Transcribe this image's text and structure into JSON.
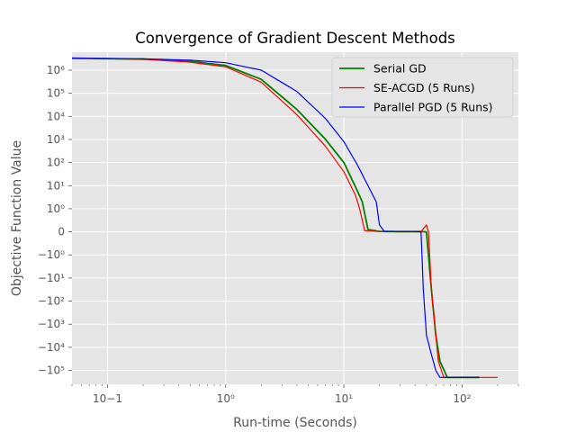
{
  "chart_data": {
    "type": "line",
    "title": "Convergence of Gradient Descent Methods",
    "xlabel": "Run-time (Seconds)",
    "ylabel": "Objective Function Value",
    "xscale": "log",
    "yscale": "symlog",
    "xlim": [
      0.05,
      300
    ],
    "ylim": [
      -400000,
      6000000
    ],
    "grid": true,
    "legend_position": "top-right",
    "x_ticks": [
      {
        "value": 0.1,
        "label": "10−1"
      },
      {
        "value": 1,
        "label": "10⁰"
      },
      {
        "value": 10,
        "label": "10¹"
      },
      {
        "value": 100,
        "label": "10²"
      }
    ],
    "y_ticks": [
      {
        "value": 1000000,
        "label": "10⁶"
      },
      {
        "value": 100000,
        "label": "10⁵"
      },
      {
        "value": 10000,
        "label": "10⁴"
      },
      {
        "value": 1000,
        "label": "10³"
      },
      {
        "value": 100,
        "label": "10²"
      },
      {
        "value": 10,
        "label": "10¹"
      },
      {
        "value": 1,
        "label": "10⁰"
      },
      {
        "value": 0,
        "label": "0"
      },
      {
        "value": -1,
        "label": "−10⁰"
      },
      {
        "value": -10,
        "label": "−10¹"
      },
      {
        "value": -100,
        "label": "−10²"
      },
      {
        "value": -1000,
        "label": "−10³"
      },
      {
        "value": -10000,
        "label": "−10⁴"
      },
      {
        "value": -100000,
        "label": "−10⁵"
      }
    ],
    "series": [
      {
        "name": "Serial GD",
        "color": "#008000",
        "x": [
          0.05,
          0.2,
          0.5,
          1,
          2,
          4,
          7,
          10,
          13,
          14.3,
          16,
          20,
          30,
          45,
          50,
          55,
          60,
          65,
          75,
          90,
          140
        ],
        "y": [
          3300000,
          3000000,
          2400000,
          1600000,
          400000,
          20000,
          1000,
          100,
          6,
          2,
          0.1,
          0.02,
          0.01,
          0.01,
          0,
          -30,
          -3000,
          -40000,
          -200000,
          -200000,
          -200000
        ]
      },
      {
        "name": "SE-ACGD (5 Runs)",
        "color": "#ff0000",
        "x": [
          0.05,
          0.2,
          0.5,
          1,
          2,
          4,
          7,
          10,
          12.5,
          13.6,
          15,
          20,
          30,
          45,
          50,
          52,
          55,
          60,
          63,
          70,
          90,
          200
        ],
        "y": [
          3300000,
          3000000,
          2200000,
          1400000,
          300000,
          12000,
          500,
          40,
          4,
          1,
          0.05,
          0.01,
          0.01,
          0.01,
          0.3,
          0,
          -30,
          -3000,
          -40000,
          -200000,
          -200000,
          -200000
        ]
      },
      {
        "name": "Parallel PGD (5 Runs)",
        "color": "#0000ff",
        "x": [
          0.05,
          0.2,
          0.5,
          1,
          2,
          4,
          7,
          10,
          13,
          16,
          18.8,
          20,
          22,
          30,
          40,
          45,
          47,
          50,
          55,
          60,
          65,
          70,
          140
        ],
        "y": [
          3300000,
          3100000,
          2700000,
          2100000,
          1000000,
          120000,
          8000,
          800,
          80,
          10,
          2,
          0.3,
          0.02,
          0.01,
          0.01,
          0,
          -30,
          -3000,
          -20000,
          -100000,
          -200000,
          -200000,
          -200000
        ]
      }
    ]
  }
}
